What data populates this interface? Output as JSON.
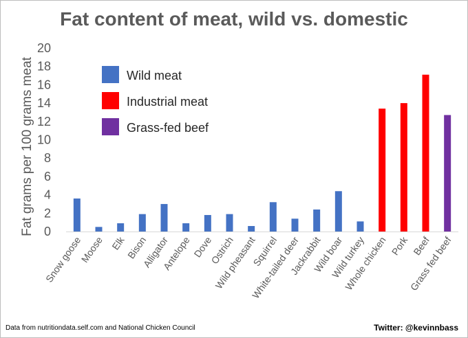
{
  "chart_data": {
    "type": "bar",
    "title": "Fat content of meat, wild vs. domestic",
    "ylabel": "Fat grams per 100 grams meat",
    "xlabel": "",
    "ylim": [
      0,
      20
    ],
    "yticks": [
      0,
      2,
      4,
      6,
      8,
      10,
      12,
      14,
      16,
      18,
      20
    ],
    "grid": false,
    "legend_position": "top-left",
    "categories": [
      "Snow goose",
      "Moose",
      "Elk",
      "Bison",
      "Alligator",
      "Antelope",
      "Dove",
      "Ostrich",
      "Wild pheasant",
      "Squirrel",
      "White-tailed deer",
      "Jackrabbit",
      "Wild boar",
      "Wild turkey",
      "Whole chicken",
      "Pork",
      "Beef",
      "Grass fed beef"
    ],
    "values": [
      3.6,
      0.5,
      0.9,
      1.9,
      3.0,
      0.9,
      1.8,
      1.9,
      0.6,
      3.2,
      1.4,
      2.4,
      4.4,
      1.1,
      13.4,
      14.0,
      17.1,
      12.7
    ],
    "groups": [
      "Wild meat",
      "Wild meat",
      "Wild meat",
      "Wild meat",
      "Wild meat",
      "Wild meat",
      "Wild meat",
      "Wild meat",
      "Wild meat",
      "Wild meat",
      "Wild meat",
      "Wild meat",
      "Wild meat",
      "Wild meat",
      "Industrial meat",
      "Industrial meat",
      "Industrial meat",
      "Grass-fed beef"
    ],
    "legend": [
      {
        "name": "Wild meat",
        "color": "#4472C4"
      },
      {
        "name": "Industrial meat",
        "color": "#FF0000"
      },
      {
        "name": "Grass-fed beef",
        "color": "#7030A0"
      }
    ]
  },
  "footer": {
    "source": "Data from nutritiondata.self.com and National Chicken Council",
    "credit": "Twitter: @kevinnbass"
  }
}
